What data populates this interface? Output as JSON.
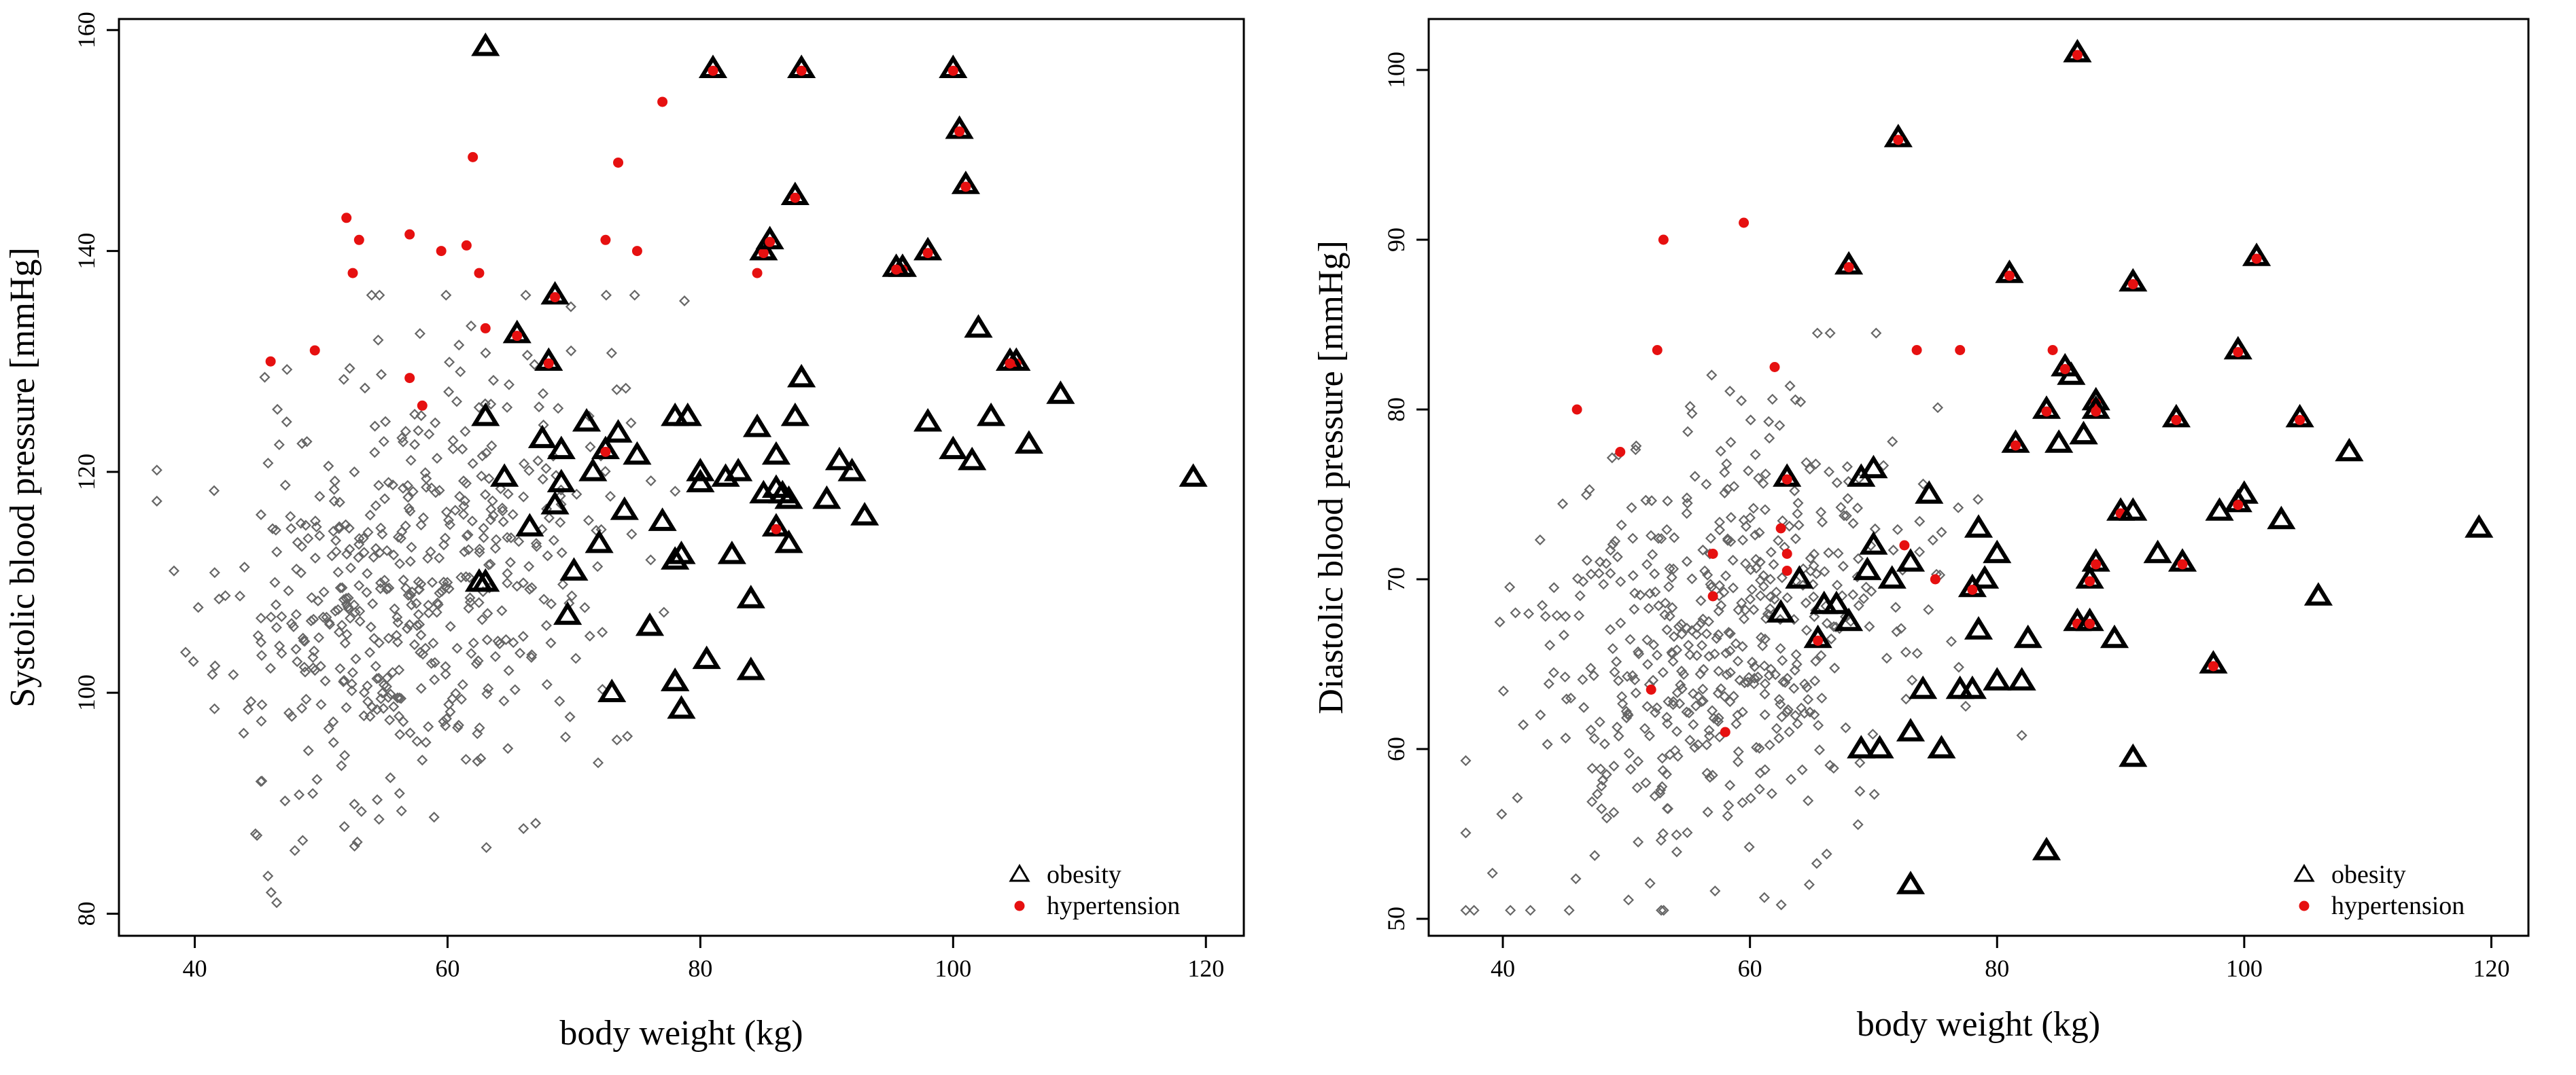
{
  "colors": {
    "normal": "#666666",
    "obesity": "#000000",
    "hypertension": "#e61010"
  },
  "legend": {
    "obesity": "obesity",
    "hypertension": "hypertension"
  },
  "chart_data": [
    {
      "type": "scatter",
      "title": "",
      "xlabel": "body weight (kg)",
      "ylabel": "Systolic blood pressure [mmHg]",
      "xlim": [
        34,
        123
      ],
      "ylim": [
        78,
        161
      ],
      "xticks": [
        40,
        60,
        80,
        100,
        120
      ],
      "yticks": [
        80,
        100,
        120,
        140,
        160
      ],
      "legend_position": "bottom-right",
      "normal_random": {
        "n": 520,
        "seed": 11,
        "x_mean": 57,
        "x_sd": 7.5,
        "x_min": 37,
        "x_max": 82,
        "y_mean": 110,
        "y_sd": 10,
        "y_min": 81,
        "y_max": 136,
        "slope": 0.35
      },
      "series": [
        {
          "name": "obesity",
          "x": [
            63,
            81,
            88,
            100,
            100.5,
            101,
            68.5,
            65.5,
            68,
            72.5,
            63,
            64.5,
            67.5,
            69,
            71,
            73.5,
            75,
            78,
            79,
            80,
            82,
            84.5,
            86,
            87.5,
            88,
            90,
            91,
            92,
            93,
            96,
            98,
            100,
            102,
            103,
            105,
            106,
            108.5,
            119,
            71.5,
            69,
            68.5,
            74,
            77,
            78,
            78.5,
            84,
            82.5,
            85,
            86.5,
            87,
            86,
            83,
            72,
            70,
            66.5,
            62.5,
            84,
            86,
            87,
            78.5,
            95.5,
            98,
            104.5,
            101.5,
            63,
            78,
            73,
            69.5,
            76,
            78,
            80.5,
            80,
            85,
            85.5,
            87.5
          ],
          "y": [
            158.5,
            156.5,
            156.5,
            156.5,
            151,
            146,
            136,
            132.5,
            130,
            122,
            125,
            119.5,
            123,
            122,
            124.5,
            123.5,
            121.5,
            125,
            125,
            120,
            119.5,
            124,
            121.5,
            125,
            128.5,
            117.5,
            121,
            120,
            116,
            138.5,
            124.5,
            122,
            133,
            125,
            130,
            122.5,
            127,
            119.5,
            120,
            119,
            117,
            116.5,
            115.5,
            112,
            112.5,
            108.5,
            112.5,
            118,
            118,
            117.5,
            118.5,
            120,
            113.5,
            111,
            115,
            110,
            102,
            115,
            113.5,
            98.5,
            138.5,
            140,
            130,
            121,
            110,
            101,
            100,
            107,
            106,
            101,
            103,
            119,
            140,
            141,
            145
          ],
          "hyp": [
            false,
            true,
            true,
            true,
            true,
            true,
            true,
            true,
            true,
            true,
            false,
            false,
            false,
            false,
            false,
            false,
            false,
            false,
            false,
            false,
            false,
            false,
            false,
            false,
            false,
            false,
            false,
            false,
            false,
            true,
            false,
            false,
            false,
            false,
            true,
            false,
            false,
            false,
            false,
            false,
            false,
            false,
            false,
            false,
            false,
            false,
            false,
            false,
            false,
            false,
            false,
            false,
            false,
            false,
            false,
            false,
            false,
            true,
            false,
            false,
            true,
            true,
            true,
            false,
            false,
            false,
            false,
            false,
            false,
            false,
            false,
            false,
            true,
            true,
            true
          ]
        },
        {
          "name": "hypertension",
          "x": [
            46,
            49.5,
            52,
            52.5,
            53,
            57,
            57,
            58,
            59.5,
            61.5,
            62,
            62.5,
            63,
            72.5,
            73.5,
            75,
            77,
            84.5
          ],
          "y": [
            130,
            131,
            143,
            138,
            141,
            141.5,
            128.5,
            126,
            140,
            140.5,
            148.5,
            138,
            133,
            141,
            148,
            140,
            153.5,
            138
          ]
        }
      ]
    },
    {
      "type": "scatter",
      "title": "",
      "xlabel": "body weight (kg)",
      "ylabel": "Diastolic blood pressure [mmHg]",
      "xlim": [
        34,
        123
      ],
      "ylim": [
        49,
        103
      ],
      "xticks": [
        40,
        60,
        80,
        100,
        120
      ],
      "yticks": [
        50,
        60,
        70,
        80,
        90,
        100
      ],
      "legend_position": "bottom-right",
      "normal_random": {
        "n": 520,
        "seed": 23,
        "x_mean": 57,
        "x_sd": 7.5,
        "x_min": 37,
        "x_max": 82,
        "y_mean": 66,
        "y_sd": 6.3,
        "y_min": 50.5,
        "y_max": 84.5,
        "slope": 0.2
      },
      "series": [
        {
          "name": "obesity",
          "x": [
            86.5,
            72,
            68,
            81,
            91,
            101,
            99.5,
            84,
            88,
            88,
            85,
            86,
            87,
            94.5,
            90,
            91,
            98,
            100,
            103,
            104.5,
            108.5,
            119,
            106,
            99.5,
            97.5,
            91,
            89.5,
            86.5,
            87.5,
            88,
            82.5,
            80,
            78.5,
            79,
            78,
            80,
            77,
            74,
            74.5,
            73,
            71.5,
            70,
            69.5,
            68,
            67,
            66,
            65.5,
            63,
            62.5,
            69,
            70,
            73,
            75.5,
            78,
            82,
            84,
            73,
            81.5,
            87,
            93,
            95,
            85.5,
            87.5,
            70.5,
            69,
            64,
            78.5
          ],
          "y": [
            101,
            96,
            88.5,
            88,
            87.5,
            89,
            83.5,
            80,
            80.5,
            80,
            78,
            82,
            78.5,
            79.5,
            74,
            74,
            74,
            75,
            73.5,
            79.5,
            77.5,
            73,
            69,
            74.5,
            65,
            59.5,
            66.5,
            67.5,
            70,
            71,
            66.5,
            64,
            67,
            70,
            69.5,
            71.5,
            63.5,
            63.5,
            75,
            71,
            70,
            72,
            70.5,
            67.5,
            68.5,
            68.5,
            66.5,
            76,
            68,
            76,
            76.5,
            52,
            60,
            63.5,
            64,
            54,
            61,
            78,
            78.5,
            71.5,
            71,
            82.5,
            67.5,
            60,
            60,
            70,
            73
          ],
          "hyp": [
            true,
            true,
            true,
            true,
            true,
            true,
            true,
            true,
            true,
            true,
            false,
            false,
            false,
            true,
            true,
            false,
            false,
            false,
            false,
            true,
            false,
            false,
            false,
            true,
            true,
            false,
            false,
            true,
            true,
            true,
            false,
            false,
            false,
            false,
            true,
            false,
            false,
            false,
            false,
            false,
            false,
            false,
            false,
            false,
            false,
            false,
            true,
            true,
            false,
            false,
            false,
            false,
            false,
            false,
            false,
            false,
            false,
            true,
            false,
            false,
            true,
            true,
            true,
            false,
            false,
            false,
            false
          ]
        },
        {
          "name": "hypertension",
          "x": [
            46,
            49.5,
            52.5,
            53,
            52,
            57,
            57,
            58,
            59.5,
            62,
            62.5,
            63,
            72.5,
            73.5,
            75,
            77,
            84.5,
            63
          ],
          "y": [
            80,
            77.5,
            83.5,
            90,
            63.5,
            71.5,
            69,
            61,
            91,
            82.5,
            73,
            70.5,
            72,
            83.5,
            70,
            83.5,
            83.5,
            71.5
          ]
        }
      ]
    }
  ]
}
